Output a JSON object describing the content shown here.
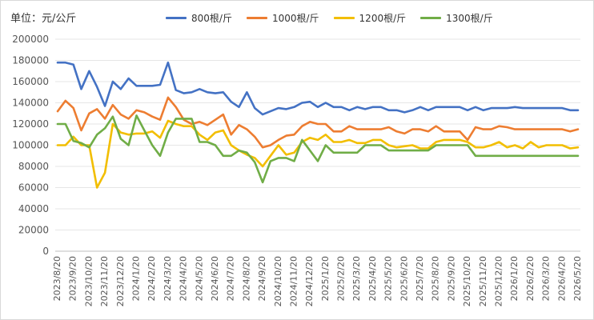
{
  "unit_label": "单位：元/公斤",
  "chart_data": {
    "type": "line",
    "title": "",
    "xlabel": "",
    "ylabel": "单位：元/公斤",
    "ylim": [
      0,
      200000
    ],
    "yticks": [
      0,
      20000,
      40000,
      60000,
      80000,
      100000,
      120000,
      140000,
      160000,
      180000,
      200000
    ],
    "xtick_labels": [
      "2023/8/20",
      "2023/9/20",
      "2023/10/20",
      "2023/11/20",
      "2023/12/20",
      "2024/1/20",
      "2024/2/20",
      "2024/3/20",
      "2024/4/20",
      "2024/5/20",
      "2024/6/20",
      "2024/7/20",
      "2024/8/20",
      "2024/9/20",
      "2024/10/20",
      "2024/11/20",
      "2024/12/20",
      "2025/1/20",
      "2025/2/20",
      "2025/3/20",
      "2025/4/20",
      "2025/5/20",
      "2025/6/20",
      "2025/7/20",
      "2025/8/20",
      "2025/9/20",
      "2025/10/20",
      "2025/11/20",
      "2025/12/20",
      "2026/1/20",
      "2026/2/20",
      "2026/3/20",
      "2026/4/20",
      "2026/5/20"
    ],
    "points_per_series": 67,
    "grid": true,
    "legend_position": "top",
    "series": [
      {
        "name": "800根/斤",
        "color": "#4472C4",
        "values": [
          178000,
          178000,
          176000,
          153000,
          170000,
          155000,
          137000,
          160000,
          153000,
          163000,
          156000,
          156000,
          156000,
          157000,
          178000,
          152000,
          149000,
          150000,
          153000,
          150000,
          149000,
          150000,
          141000,
          136000,
          150000,
          135000,
          129000,
          132000,
          135000,
          134000,
          136000,
          140000,
          141000,
          136000,
          140000,
          136000,
          136000,
          133000,
          136000,
          134000,
          136000,
          136000,
          133000,
          133000,
          131000,
          133000,
          136000,
          133000,
          136000,
          136000,
          136000,
          136000,
          133000,
          136000,
          133000,
          135000,
          135000,
          135000,
          136000,
          135000,
          135000,
          135000,
          135000,
          135000,
          135000,
          133000,
          133000
        ]
      },
      {
        "name": "1000根/斤",
        "color": "#ED7D31",
        "values": [
          132000,
          142000,
          135000,
          114000,
          130000,
          134000,
          125000,
          138000,
          129000,
          125000,
          133000,
          131000,
          127000,
          124000,
          145000,
          136000,
          124000,
          120000,
          122000,
          119000,
          124000,
          129000,
          110000,
          119000,
          115000,
          108000,
          98000,
          100000,
          105000,
          109000,
          110000,
          118000,
          122000,
          120000,
          120000,
          113000,
          113000,
          118000,
          115000,
          115000,
          115000,
          115000,
          117000,
          113000,
          111000,
          115000,
          115000,
          113000,
          118000,
          113000,
          113000,
          113000,
          105000,
          117000,
          115000,
          115000,
          118000,
          117000,
          115000,
          115000,
          115000,
          115000,
          115000,
          115000,
          115000,
          113000,
          115000
        ]
      },
      {
        "name": "1200根/斤",
        "color": "#F2BE00",
        "values": [
          100000,
          100000,
          108000,
          100000,
          100000,
          60000,
          74000,
          120000,
          112000,
          110000,
          111000,
          111000,
          113000,
          107000,
          123000,
          120000,
          118000,
          118000,
          110000,
          105000,
          112000,
          114000,
          100000,
          95000,
          91000,
          88000,
          80000,
          90000,
          100000,
          91000,
          93000,
          103000,
          107000,
          105000,
          110000,
          103000,
          103000,
          105000,
          102000,
          102000,
          105000,
          105000,
          100000,
          98000,
          99000,
          100000,
          97000,
          97000,
          103000,
          105000,
          105000,
          105000,
          103000,
          98000,
          98000,
          100000,
          103000,
          98000,
          100000,
          97000,
          103000,
          98000,
          100000,
          100000,
          100000,
          97000,
          98000
        ]
      },
      {
        "name": "1300根/斤",
        "color": "#70AD47",
        "values": [
          120000,
          120000,
          104000,
          102000,
          98000,
          110000,
          116000,
          127000,
          106000,
          100000,
          128000,
          114000,
          100000,
          90000,
          112000,
          125000,
          125000,
          125000,
          103000,
          103000,
          100000,
          90000,
          90000,
          95000,
          93000,
          84000,
          65000,
          85000,
          88000,
          88000,
          85000,
          105000,
          95000,
          85000,
          100000,
          93000,
          93000,
          93000,
          93000,
          100000,
          100000,
          100000,
          95000,
          95000,
          95000,
          95000,
          95000,
          95000,
          100000,
          100000,
          100000,
          100000,
          100000,
          90000,
          90000,
          90000,
          90000,
          90000,
          90000,
          90000,
          90000,
          90000,
          90000,
          90000,
          90000,
          90000,
          90000
        ]
      }
    ]
  }
}
